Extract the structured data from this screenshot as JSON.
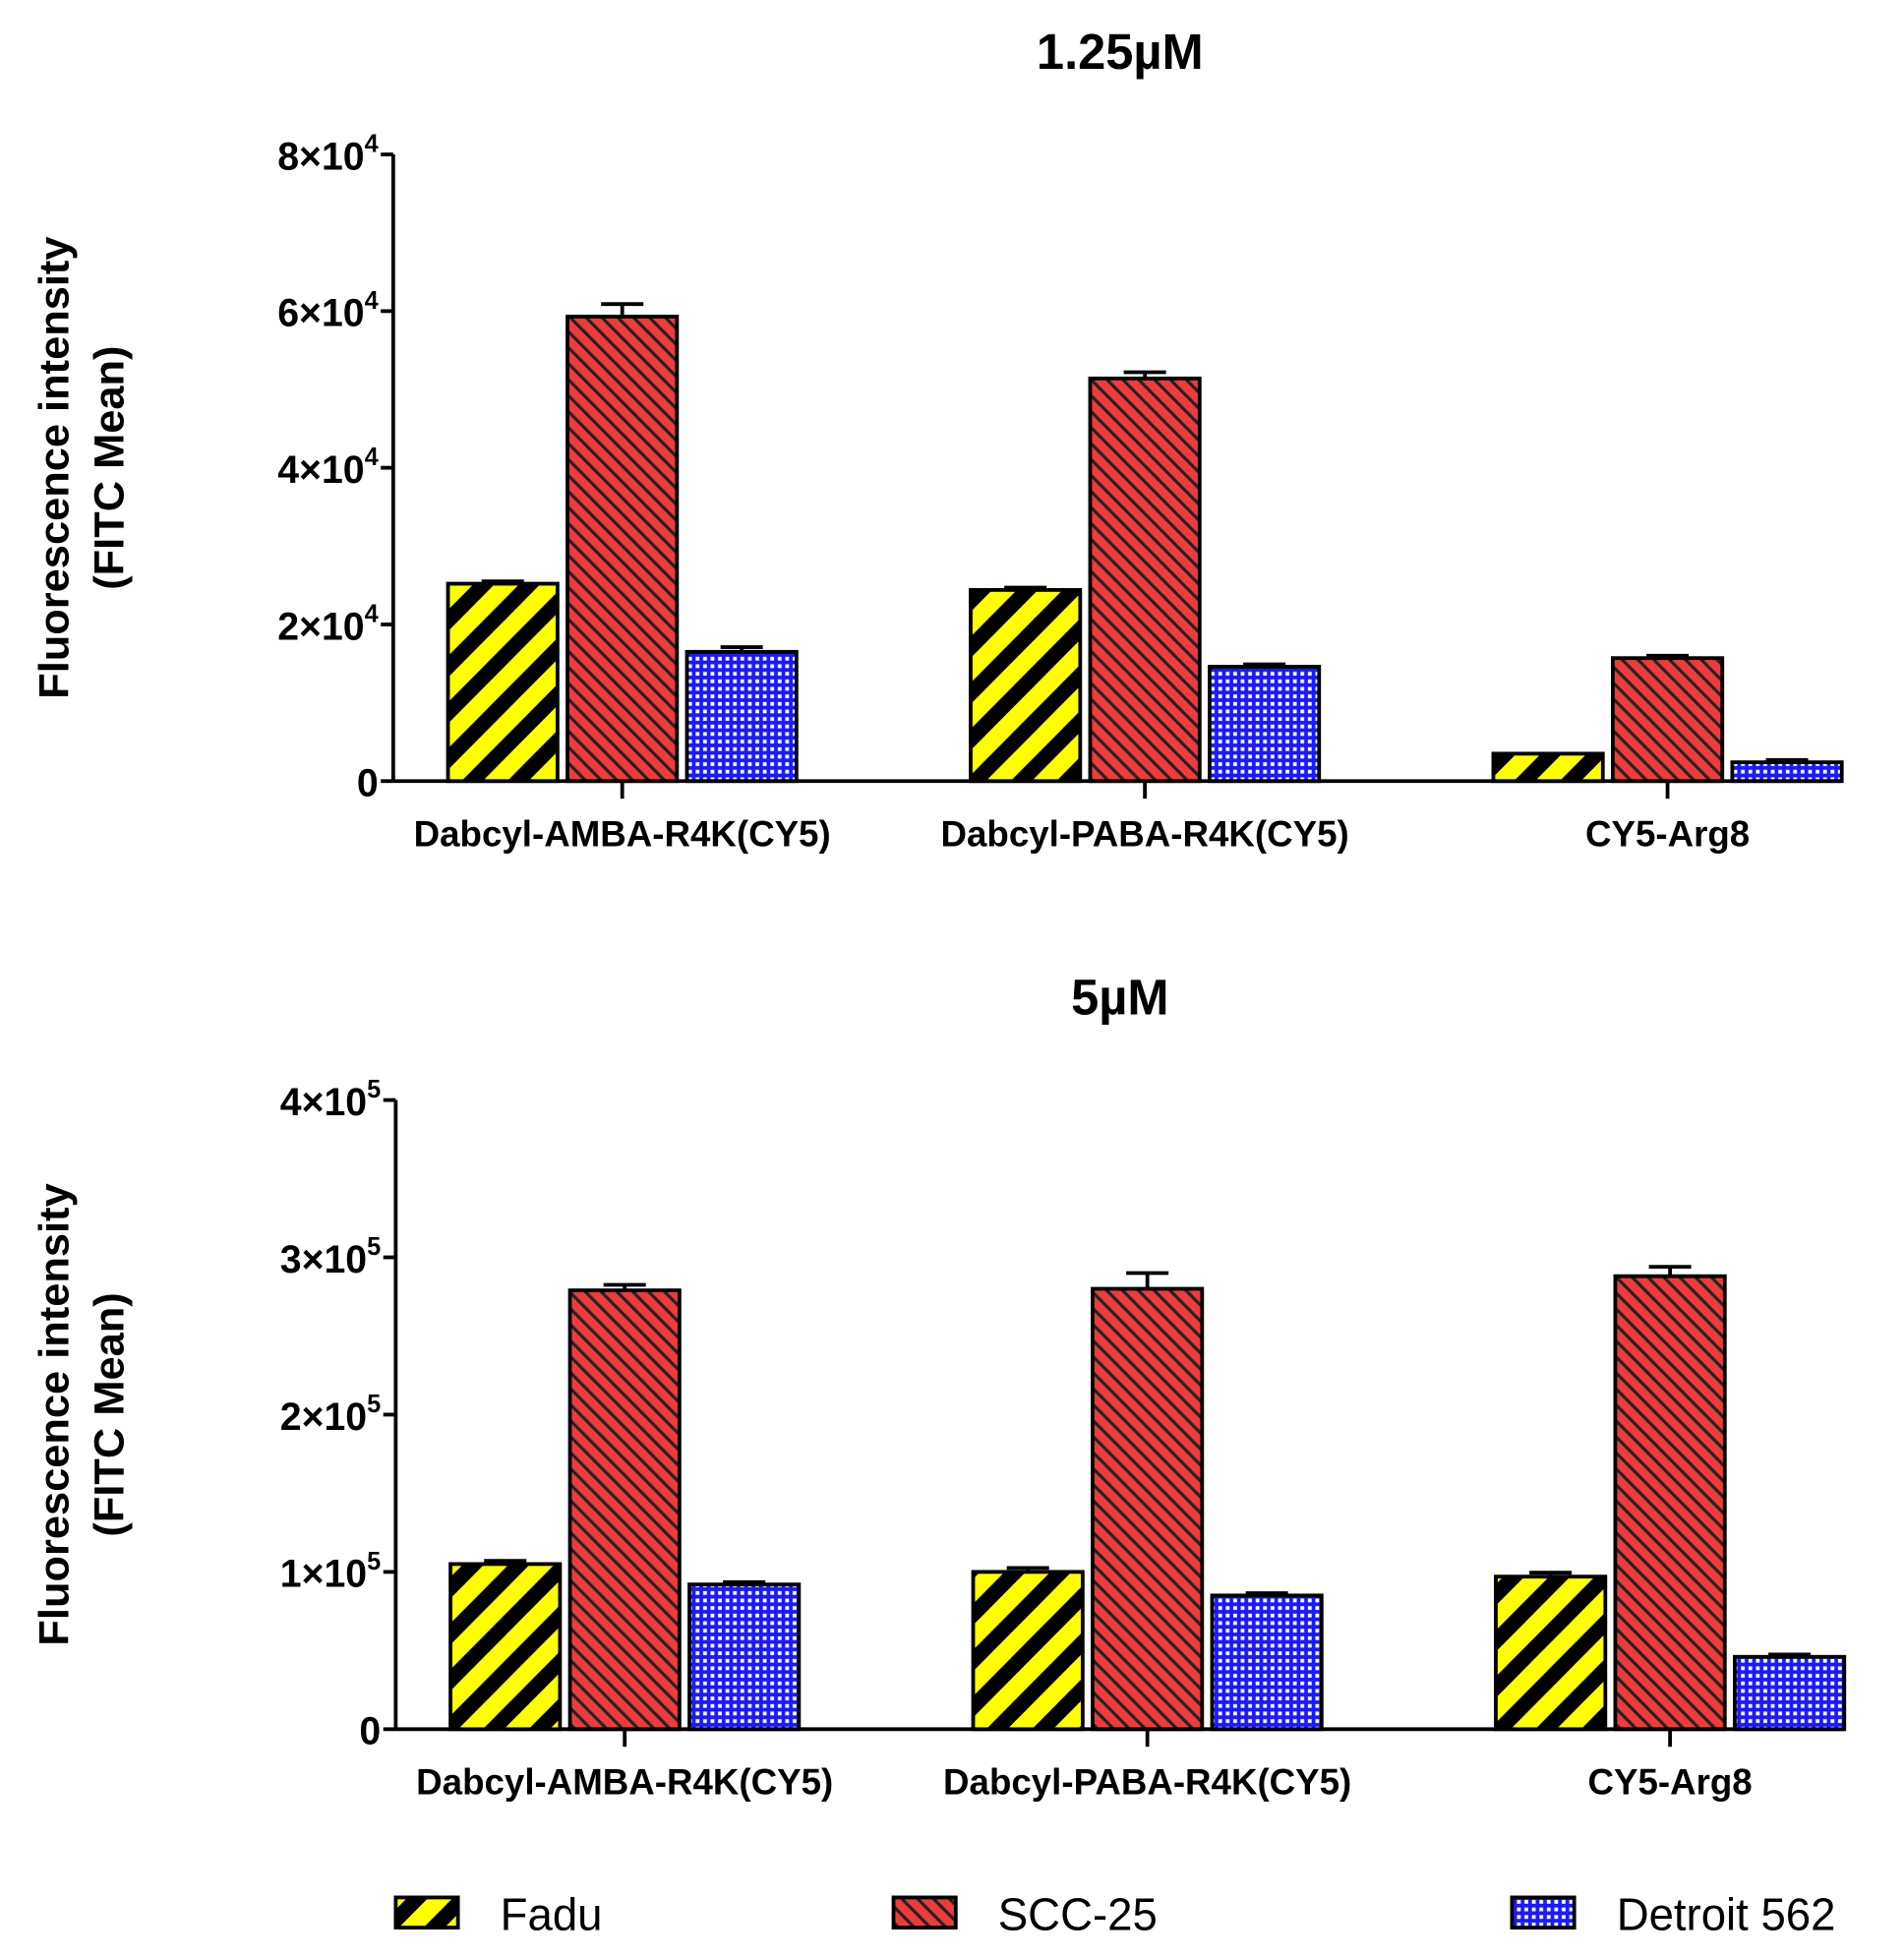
{
  "chart_data": [
    {
      "type": "bar",
      "title": "1.25µM",
      "ylabel_line1": "Fluorescence intensity",
      "ylabel_line2": "(FITC Mean)",
      "xlabel": "",
      "ylim": [
        0,
        80000
      ],
      "yticks": [
        {
          "value": 0,
          "base": "0",
          "exp": ""
        },
        {
          "value": 20000,
          "base": "2×10",
          "exp": "4"
        },
        {
          "value": 40000,
          "base": "4×10",
          "exp": "4"
        },
        {
          "value": 60000,
          "base": "6×10",
          "exp": "4"
        },
        {
          "value": 80000,
          "base": "8×10",
          "exp": "4"
        }
      ],
      "categories": [
        "Dabcyl-AMBA-R4K(CY5)",
        "Dabcyl-PABA-R4K(CY5)",
        "CY5-Arg8"
      ],
      "series": [
        {
          "name": "Fadu",
          "values": [
            25200,
            24400,
            3500
          ],
          "errors": [
            300,
            300,
            0
          ]
        },
        {
          "name": "SCC-25",
          "values": [
            59300,
            51400,
            15700
          ],
          "errors": [
            1600,
            800,
            300
          ]
        },
        {
          "name": "Detroit 562",
          "values": [
            16500,
            14600,
            2400
          ],
          "errors": [
            600,
            300,
            300
          ]
        }
      ]
    },
    {
      "type": "bar",
      "title": "5µM",
      "ylabel_line1": "Fluorescence intensity",
      "ylabel_line2": "(FITC Mean)",
      "xlabel": "",
      "ylim": [
        0,
        400000
      ],
      "yticks": [
        {
          "value": 0,
          "base": "0",
          "exp": ""
        },
        {
          "value": 100000,
          "base": "1×10",
          "exp": "5"
        },
        {
          "value": 200000,
          "base": "2×10",
          "exp": "5"
        },
        {
          "value": 300000,
          "base": "3×10",
          "exp": "5"
        },
        {
          "value": 400000,
          "base": "4×10",
          "exp": "5"
        }
      ],
      "categories": [
        "Dabcyl-AMBA-R4K(CY5)",
        "Dabcyl-PABA-R4K(CY5)",
        "CY5-Arg8"
      ],
      "series": [
        {
          "name": "Fadu",
          "values": [
            105000,
            100000,
            97000
          ],
          "errors": [
            2000,
            2500,
            2500
          ]
        },
        {
          "name": "SCC-25",
          "values": [
            279000,
            280000,
            288000
          ],
          "errors": [
            3500,
            10000,
            6000
          ]
        },
        {
          "name": "Detroit 562",
          "values": [
            92000,
            85000,
            46000
          ],
          "errors": [
            1500,
            1500,
            1500
          ]
        }
      ]
    }
  ],
  "legend": {
    "position": "bottom",
    "items": [
      {
        "label": "Fadu",
        "color": "#ffff00"
      },
      {
        "label": "SCC-25",
        "color": "#ef3b3b"
      },
      {
        "label": "Detroit 562",
        "color": "#1a1aff"
      }
    ]
  }
}
